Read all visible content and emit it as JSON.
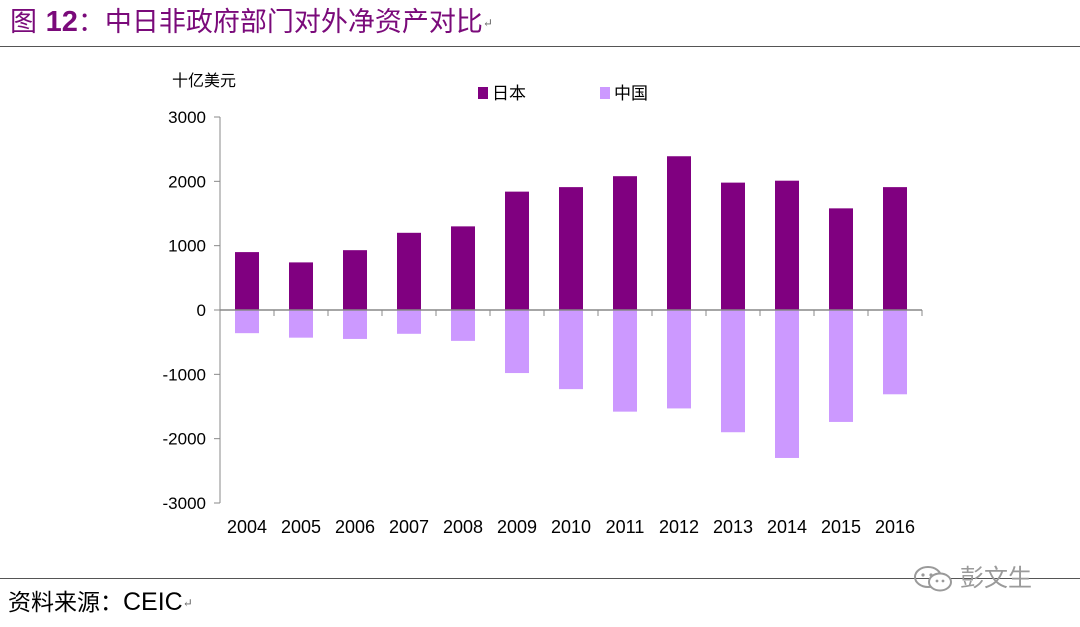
{
  "header": {
    "title_prefix": "图",
    "title_number": "12",
    "title_text": "：中日非政府部门对外净资产对比",
    "title_mark": "↵"
  },
  "footer": {
    "source_label": "资料来源：",
    "source_value": "CEIC",
    "source_mark": "↵",
    "watermark": "彭文生"
  },
  "colors": {
    "title": "#7a0a7a",
    "japan": "#800080",
    "china": "#cc99ff",
    "axis": "#888888"
  },
  "chart_data": {
    "type": "bar",
    "ylabel": "十亿美元",
    "ylim": [
      -3000,
      3000
    ],
    "yticks": [
      3000,
      2000,
      1000,
      0,
      -1000,
      -2000,
      -3000
    ],
    "ytick_labels": [
      "3000",
      "2000",
      "1000",
      "0",
      "-1000",
      "-2000",
      "-3000"
    ],
    "grid": false,
    "legend_position": "top-center",
    "categories": [
      "2004",
      "2005",
      "2006",
      "2007",
      "2008",
      "2009",
      "2010",
      "2011",
      "2012",
      "2013",
      "2014",
      "2015",
      "2016"
    ],
    "series": [
      {
        "name": "日本",
        "color": "#800080",
        "values": [
          900,
          740,
          930,
          1200,
          1300,
          1840,
          1910,
          2080,
          2390,
          1980,
          2010,
          1580,
          1910
        ]
      },
      {
        "name": "中国",
        "color": "#cc99ff",
        "values": [
          -360,
          -430,
          -450,
          -370,
          -480,
          -980,
          -1230,
          -1580,
          -1530,
          -1900,
          -2300,
          -1740,
          -1310
        ]
      }
    ]
  }
}
